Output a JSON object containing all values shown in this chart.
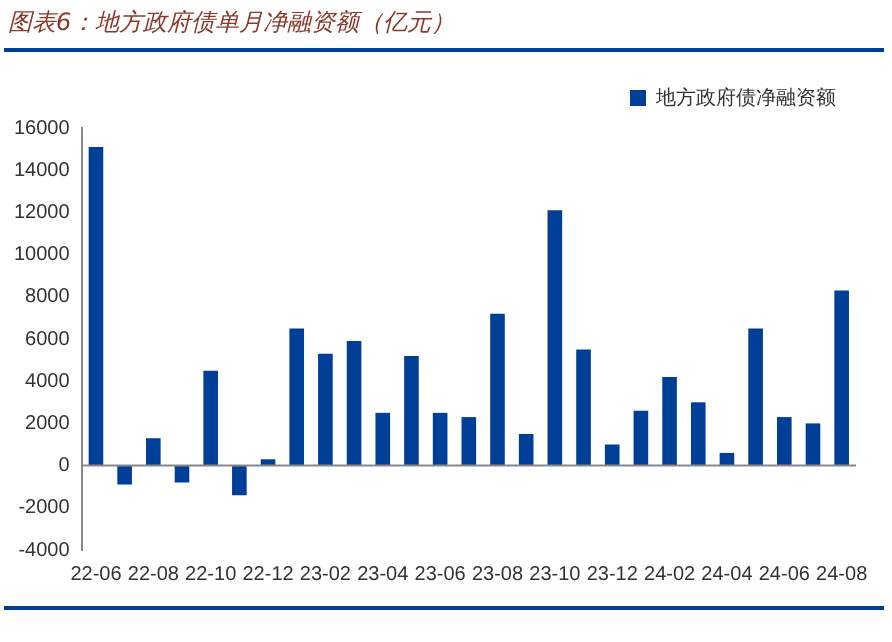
{
  "chart_data": {
    "type": "bar",
    "title": "图表6：地方政府债单月净融资额（亿元）",
    "categories": [
      "22-06",
      null,
      "22-08",
      null,
      "22-10",
      null,
      "22-12",
      null,
      "23-02",
      null,
      "23-04",
      null,
      "23-06",
      null,
      "23-08",
      null,
      "23-10",
      null,
      "23-12",
      null,
      "24-02",
      null,
      "24-04",
      null,
      "24-06",
      null,
      "24-08"
    ],
    "series": [
      {
        "name": "地方政府债净融资额",
        "color": "#003f98",
        "values": [
          15100,
          -900,
          1300,
          -800,
          4500,
          -1400,
          300,
          6500,
          5300,
          5900,
          2500,
          5200,
          2500,
          2300,
          7200,
          1500,
          12100,
          5500,
          1000,
          2600,
          4200,
          3000,
          600,
          6500,
          2300,
          2000,
          8300
        ]
      }
    ],
    "ylim": [
      -4000,
      16000
    ],
    "yticks": [
      -4000,
      -2000,
      0,
      2000,
      4000,
      6000,
      8000,
      10000,
      12000,
      14000,
      16000
    ],
    "legend": "top right"
  }
}
